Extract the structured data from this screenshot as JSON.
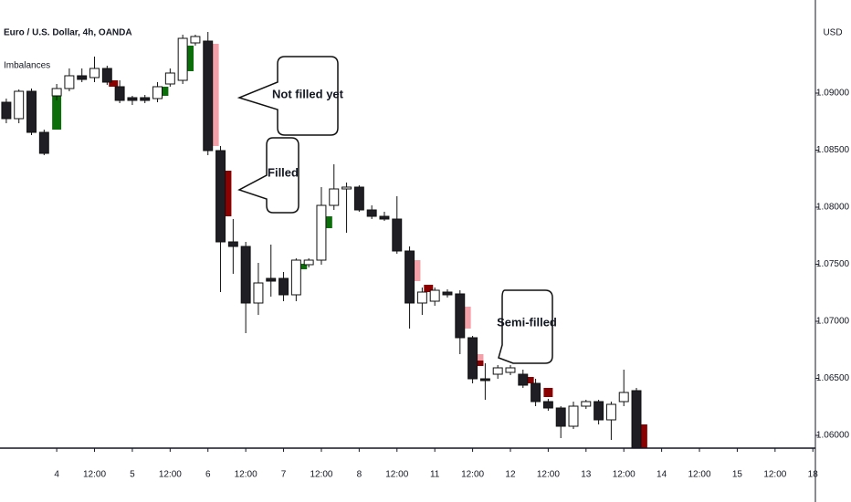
{
  "chart_data": {
    "type": "candlestick",
    "title": "Euro / U.S. Dollar, 4h, OANDA",
    "indicator": "Imbalances",
    "y_axis_label": "USD",
    "up_color": "#ffffff",
    "down_color": "#1e1e24",
    "border_color": "#111111",
    "x": [
      -4,
      -3,
      -2,
      -1,
      0,
      1,
      2,
      3,
      4,
      5,
      6,
      7,
      8,
      9,
      10,
      11,
      12,
      13,
      14,
      15,
      16,
      17,
      18,
      19,
      20,
      21,
      22,
      23,
      24,
      25,
      26,
      27,
      28,
      29,
      30,
      31,
      32,
      33,
      34,
      35,
      36,
      37,
      38,
      39,
      40,
      41,
      42,
      43,
      44,
      45,
      46
    ],
    "open": [
      1.0892,
      1.08776,
      1.09016,
      1.08656,
      1.08976,
      1.0904,
      1.09152,
      1.09136,
      1.09216,
      1.09056,
      1.0896,
      1.0896,
      1.08952,
      1.0908,
      1.09112,
      1.0944,
      1.09456,
      1.08496,
      1.07696,
      1.07656,
      1.0716,
      1.07376,
      1.07376,
      1.07232,
      1.07496,
      1.07536,
      1.08016,
      1.0816,
      1.08176,
      1.07976,
      1.0792,
      1.07896,
      1.07616,
      1.0716,
      1.07176,
      1.07256,
      1.0724,
      1.06856,
      1.06496,
      1.06536,
      1.06552,
      1.06536,
      1.06456,
      1.06296,
      1.0624,
      1.0608,
      1.06256,
      1.06296,
      1.06136,
      1.06296,
      1.06392
    ],
    "high": [
      1.08952,
      1.09032,
      1.0904,
      1.0868,
      1.0908,
      1.09216,
      1.09216,
      1.0932,
      1.0924,
      1.09112,
      1.08976,
      1.08984,
      1.09096,
      1.09216,
      1.09512,
      1.09512,
      1.09536,
      1.08536,
      1.07896,
      1.07696,
      1.07512,
      1.07672,
      1.07432,
      1.07552,
      1.07552,
      1.08176,
      1.08376,
      1.08216,
      1.08192,
      1.08016,
      1.0796,
      1.08096,
      1.07656,
      1.07296,
      1.07296,
      1.0728,
      1.07272,
      1.06872,
      1.06632,
      1.06616,
      1.06616,
      1.06576,
      1.06496,
      1.0632,
      1.06256,
      1.06296,
      1.06312,
      1.06312,
      1.06296,
      1.06576,
      1.06416
    ],
    "low": [
      1.08736,
      1.08736,
      1.08632,
      1.08456,
      1.08936,
      1.09016,
      1.09096,
      1.09096,
      1.09072,
      1.08912,
      1.08896,
      1.08912,
      1.0892,
      1.09056,
      1.0908,
      1.09416,
      1.08456,
      1.07256,
      1.07416,
      1.06896,
      1.07056,
      1.07216,
      1.07176,
      1.07176,
      1.07472,
      1.07496,
      1.07976,
      1.07776,
      1.0796,
      1.07896,
      1.0788,
      1.07592,
      1.06936,
      1.07056,
      1.07136,
      1.07208,
      1.06712,
      1.06456,
      1.06312,
      1.06496,
      1.06528,
      1.06416,
      1.06256,
      1.06216,
      1.05976,
      1.06056,
      1.06232,
      1.06096,
      1.0596,
      1.06256,
      1.05856
    ],
    "close": [
      1.08776,
      1.09016,
      1.08656,
      1.08472,
      1.0904,
      1.09152,
      1.0912,
      1.09216,
      1.09096,
      1.08936,
      1.08936,
      1.08936,
      1.09056,
      1.09176,
      1.0948,
      1.09496,
      1.08496,
      1.07696,
      1.07656,
      1.0716,
      1.07336,
      1.07352,
      1.07232,
      1.07536,
      1.07536,
      1.08016,
      1.0816,
      1.08176,
      1.07976,
      1.0792,
      1.07896,
      1.07616,
      1.0716,
      1.07256,
      1.07272,
      1.07232,
      1.06856,
      1.06496,
      1.0648,
      1.06592,
      1.06592,
      1.0644,
      1.06296,
      1.0624,
      1.0608,
      1.06256,
      1.06296,
      1.06136,
      1.06272,
      1.06376,
      1.05888
    ],
    "imbalances": [
      {
        "x": 0,
        "top": 1.08976,
        "bottom": 1.0868,
        "color": "#0b6e0b"
      },
      {
        "x": 4.5,
        "top": 1.09112,
        "bottom": 1.09056,
        "color": "#8b0000"
      },
      {
        "x": 8.5,
        "top": 1.09056,
        "bottom": 1.08976,
        "color": "#0b6e0b"
      },
      {
        "x": 10.5,
        "top": 1.09416,
        "bottom": 1.09192,
        "color": "#0b6e0b"
      },
      {
        "x": 12.5,
        "top": 1.09432,
        "bottom": 1.08536,
        "color": "#f4a0a8"
      },
      {
        "x": 13.5,
        "top": 1.0832,
        "bottom": 1.0792,
        "color": "#8b0000"
      },
      {
        "x": 19.5,
        "top": 1.07504,
        "bottom": 1.07456,
        "color": "#0b6e0b"
      },
      {
        "x": 21.5,
        "top": 1.0792,
        "bottom": 1.07816,
        "color": "#0b6e0b"
      },
      {
        "x": 28.5,
        "top": 1.07536,
        "bottom": 1.07352,
        "color": "#f4a0a8"
      },
      {
        "x": 29.5,
        "top": 1.0732,
        "bottom": 1.07256,
        "color": "#8b0000"
      },
      {
        "x": 32.5,
        "top": 1.07128,
        "bottom": 1.06936,
        "color": "#f4a0a8"
      },
      {
        "x": 33.5,
        "top": 1.06712,
        "bottom": 1.06656,
        "color": "#f4a0a8"
      },
      {
        "x": 33.5,
        "top": 1.06656,
        "bottom": 1.06608,
        "color": "#8b0000"
      },
      {
        "x": 37.5,
        "top": 1.06512,
        "bottom": 1.06456,
        "color": "#8b0000"
      },
      {
        "x": 39,
        "top": 1.06416,
        "bottom": 1.06336,
        "color": "#8b0000"
      },
      {
        "x": 46.5,
        "top": 1.06096,
        "bottom": 1.05888,
        "color": "#8b0000"
      }
    ],
    "annotations": [
      "Not filled yet",
      "Filled",
      "Semi-filled"
    ],
    "xlim": [
      -4.5,
      60.2
    ],
    "xticks": [
      {
        "value": 0,
        "label": "4"
      },
      {
        "value": 3,
        "label": "12:00"
      },
      {
        "value": 6,
        "label": "5"
      },
      {
        "value": 9,
        "label": "12:00"
      },
      {
        "value": 12,
        "label": "6"
      },
      {
        "value": 15,
        "label": "12:00"
      },
      {
        "value": 18,
        "label": "7"
      },
      {
        "value": 21,
        "label": "12:00"
      },
      {
        "value": 24,
        "label": "8"
      },
      {
        "value": 27,
        "label": "12:00"
      },
      {
        "value": 30,
        "label": "11"
      },
      {
        "value": 33,
        "label": "12:00"
      },
      {
        "value": 36,
        "label": "12"
      },
      {
        "value": 39,
        "label": "12:00"
      },
      {
        "value": 42,
        "label": "13"
      },
      {
        "value": 45,
        "label": "12:00"
      },
      {
        "value": 48,
        "label": "14"
      },
      {
        "value": 51,
        "label": "12:00"
      },
      {
        "value": 54,
        "label": "15"
      },
      {
        "value": 57,
        "label": "12:00"
      },
      {
        "value": 60,
        "label": "18"
      }
    ],
    "ylim": [
      1.05888,
      1.09816
    ],
    "yticks": [
      {
        "value": 1.09,
        "label": "1.09000"
      },
      {
        "value": 1.085,
        "label": "1.08500"
      },
      {
        "value": 1.08,
        "label": "1.08000"
      },
      {
        "value": 1.075,
        "label": "1.07500"
      },
      {
        "value": 1.07,
        "label": "1.07000"
      },
      {
        "value": 1.065,
        "label": "1.06500"
      },
      {
        "value": 1.06,
        "label": "1.06000"
      }
    ],
    "grid": false
  }
}
